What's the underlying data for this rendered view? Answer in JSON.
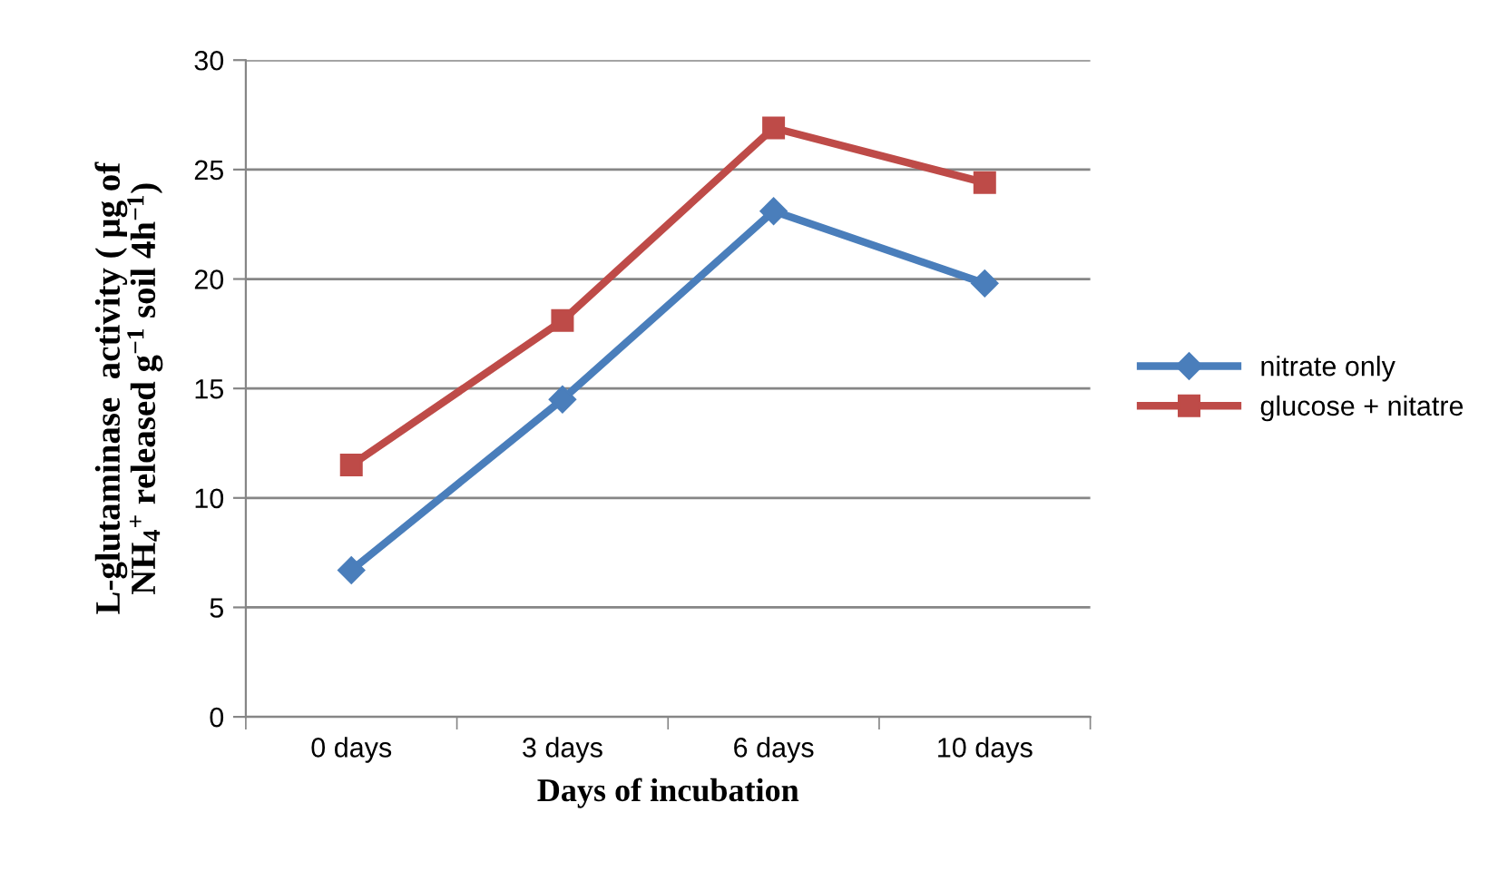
{
  "chart_data": {
    "type": "line",
    "xlabel": "Days of incubation",
    "ylabel": "L-glutaminase  activity ( µg of\nNH$_{4}$$^{+}$ released g$^{−1}$ soil 4h$^{−1}$)",
    "categories": [
      "0 days",
      "3 days",
      "6 days",
      "10 days"
    ],
    "series": [
      {
        "name": "nitrate only",
        "color": "#4a7ebb",
        "marker": "diamond",
        "values": [
          6.7,
          14.5,
          23.1,
          19.8
        ]
      },
      {
        "name": "glucose + nitatre",
        "color": "#be4b48",
        "marker": "square",
        "values": [
          11.5,
          18.1,
          26.9,
          24.4
        ]
      }
    ],
    "ylim": [
      0,
      30
    ],
    "yticks": [
      0,
      5,
      10,
      15,
      20,
      25,
      30
    ],
    "grid": "y",
    "legend": "right"
  }
}
